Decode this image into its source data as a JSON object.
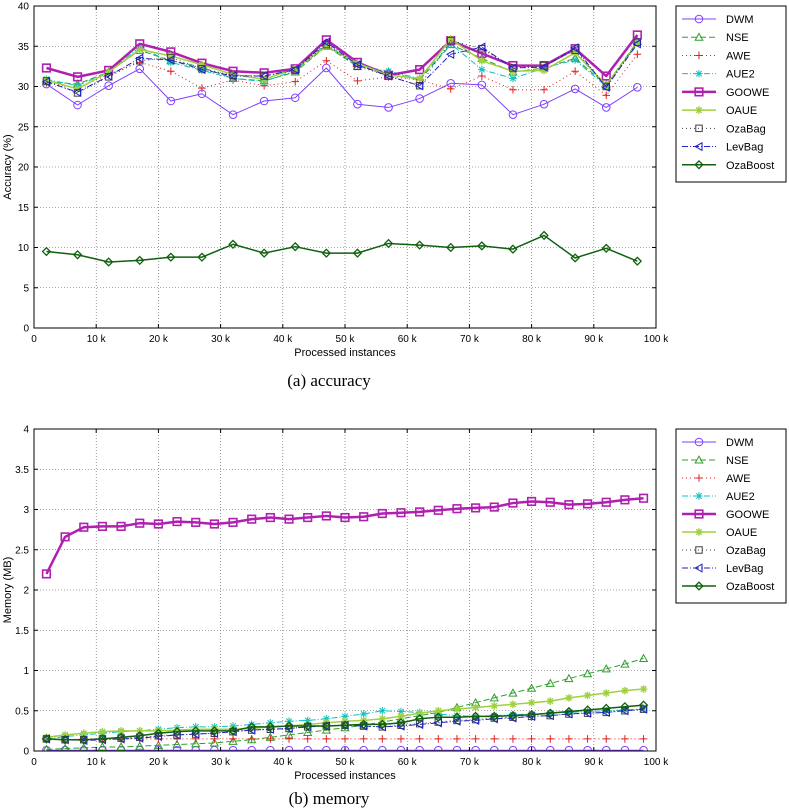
{
  "chart_data": [
    {
      "type": "line",
      "caption": "(a) accuracy",
      "xlabel": "Processed instances",
      "ylabel": "Accuracy (%)",
      "xlim": [
        0,
        100000
      ],
      "ylim": [
        0,
        40
      ],
      "xticks": [
        0,
        10000,
        20000,
        30000,
        40000,
        50000,
        60000,
        70000,
        80000,
        90000,
        100000
      ],
      "xtick_labels": [
        "0",
        "10 k",
        "20 k",
        "30 k",
        "40 k",
        "50 k",
        "60 k",
        "70 k",
        "80 k",
        "90 k",
        "100 k"
      ],
      "yticks": [
        0,
        5,
        10,
        15,
        20,
        25,
        30,
        35,
        40
      ],
      "ytick_labels": [
        "0",
        "5",
        "10",
        "15",
        "20",
        "25",
        "30",
        "35",
        "40"
      ],
      "grid": true,
      "legend": "outside-right",
      "x": [
        2000,
        7000,
        12000,
        17000,
        22000,
        27000,
        32000,
        37000,
        42000,
        47000,
        52000,
        57000,
        62000,
        67000,
        72000,
        77000,
        82000,
        87000,
        92000,
        97000
      ],
      "series": [
        {
          "name": "DWM",
          "color": "#7f3fff",
          "dash": "solid",
          "marker": "circle",
          "width": 1,
          "values": [
            30.3,
            27.7,
            30.1,
            32.2,
            28.2,
            29.1,
            26.5,
            28.2,
            28.6,
            32.3,
            27.8,
            27.4,
            28.5,
            30.4,
            30.2,
            26.5,
            27.8,
            29.7,
            27.4,
            29.9
          ]
        },
        {
          "name": "NSE",
          "color": "#2f9f2f",
          "dash": "6,3",
          "marker": "triangle",
          "width": 1,
          "values": [
            30.6,
            30.3,
            31.8,
            34.5,
            33.2,
            32.4,
            31.0,
            30.7,
            31.8,
            35.0,
            32.5,
            31.8,
            30.8,
            35.2,
            33.5,
            31.8,
            32.3,
            33.5,
            30.2,
            35.6
          ]
        },
        {
          "name": "AWE",
          "color": "#e02020",
          "dash": "1,3",
          "marker": "plus",
          "width": 1,
          "values": [
            30.5,
            29.8,
            31.5,
            33.0,
            31.9,
            29.8,
            30.8,
            30.1,
            30.6,
            33.2,
            30.7,
            31.2,
            30.8,
            29.7,
            31.3,
            29.6,
            29.6,
            31.9,
            28.9,
            34.0
          ]
        },
        {
          "name": "AUE2",
          "color": "#10c0c0",
          "dash": "6,2,1,2",
          "marker": "asterisk",
          "width": 1,
          "values": [
            30.9,
            30.1,
            31.8,
            34.9,
            33.0,
            32.0,
            31.0,
            30.6,
            32.0,
            35.3,
            32.6,
            31.9,
            31.0,
            35.3,
            32.1,
            31.0,
            32.3,
            33.3,
            30.0,
            35.6
          ]
        },
        {
          "name": "GOOWE",
          "color": "#b020b0",
          "dash": "solid",
          "marker": "square",
          "width": 2.5,
          "values": [
            32.3,
            31.2,
            32.0,
            35.3,
            34.3,
            32.9,
            31.9,
            31.7,
            32.2,
            35.8,
            33.0,
            31.4,
            32.1,
            35.7,
            34.1,
            32.6,
            32.6,
            34.7,
            31.3,
            36.4
          ]
        },
        {
          "name": "OAUE",
          "color": "#a0d040",
          "dash": "solid",
          "marker": "star",
          "width": 1.5,
          "values": [
            30.8,
            29.7,
            31.8,
            34.6,
            33.8,
            32.7,
            31.5,
            30.9,
            32.2,
            35.0,
            32.9,
            31.4,
            31.0,
            35.9,
            33.2,
            31.9,
            32.0,
            34.2,
            30.2,
            35.4
          ]
        },
        {
          "name": "OzaBag",
          "color": "#404040",
          "dash": "1,3",
          "marker": "square-open",
          "width": 1,
          "values": [
            30.7,
            29.2,
            31.2,
            33.2,
            33.6,
            32.2,
            31.4,
            31.3,
            32.0,
            35.2,
            32.5,
            31.3,
            30.1,
            35.7,
            34.7,
            32.3,
            32.6,
            34.5,
            30.0,
            35.5
          ]
        },
        {
          "name": "LevBag",
          "color": "#2020c0",
          "dash": "6,2,1,2",
          "marker": "triangle-left",
          "width": 1,
          "values": [
            30.6,
            29.3,
            31.3,
            33.5,
            33.3,
            32.1,
            31.3,
            31.3,
            32.1,
            35.5,
            32.7,
            31.3,
            30.1,
            34.0,
            34.9,
            32.3,
            32.4,
            34.8,
            29.9,
            35.3
          ]
        },
        {
          "name": "OzaBoost",
          "color": "#106010",
          "dash": "solid",
          "marker": "diamond",
          "width": 1.5,
          "values": [
            9.5,
            9.1,
            8.2,
            8.4,
            8.8,
            8.8,
            10.4,
            9.3,
            10.1,
            9.3,
            9.3,
            10.5,
            10.3,
            10.0,
            10.2,
            9.8,
            11.5,
            8.7,
            9.9,
            8.3
          ]
        }
      ]
    },
    {
      "type": "line",
      "caption": "(b) memory",
      "xlabel": "Processed instances",
      "ylabel": "Memory (MB)",
      "xlim": [
        0,
        100000
      ],
      "ylim": [
        0,
        4
      ],
      "xticks": [
        0,
        10000,
        20000,
        30000,
        40000,
        50000,
        60000,
        70000,
        80000,
        90000,
        100000
      ],
      "xtick_labels": [
        "0",
        "10 k",
        "20 k",
        "30 k",
        "40 k",
        "50 k",
        "60 k",
        "70 k",
        "80 k",
        "90 k",
        "100 k"
      ],
      "yticks": [
        0,
        0.5,
        1,
        1.5,
        2,
        2.5,
        3,
        3.5,
        4
      ],
      "ytick_labels": [
        "0",
        "0.5",
        "1",
        "1.5",
        "2",
        "2.5",
        "3",
        "3.5",
        "4"
      ],
      "grid": true,
      "legend": "outside-right",
      "x": [
        2000,
        5000,
        8000,
        11000,
        14000,
        17000,
        20000,
        23000,
        26000,
        29000,
        32000,
        35000,
        38000,
        41000,
        44000,
        47000,
        50000,
        53000,
        56000,
        59000,
        62000,
        65000,
        68000,
        71000,
        74000,
        77000,
        80000,
        83000,
        86000,
        89000,
        92000,
        95000,
        98000
      ],
      "series": [
        {
          "name": "DWM",
          "color": "#7f3fff",
          "dash": "solid",
          "marker": "circle",
          "width": 1,
          "values": [
            0.01,
            0.01,
            0.01,
            0.01,
            0.01,
            0.01,
            0.01,
            0.01,
            0.01,
            0.01,
            0.01,
            0.01,
            0.01,
            0.01,
            0.01,
            0.01,
            0.01,
            0.01,
            0.01,
            0.01,
            0.01,
            0.01,
            0.01,
            0.01,
            0.01,
            0.01,
            0.01,
            0.01,
            0.01,
            0.01,
            0.01,
            0.01,
            0.01
          ]
        },
        {
          "name": "NSE",
          "color": "#2f9f2f",
          "dash": "6,3",
          "marker": "triangle",
          "width": 1,
          "values": [
            0.02,
            0.03,
            0.04,
            0.05,
            0.05,
            0.06,
            0.07,
            0.08,
            0.09,
            0.1,
            0.12,
            0.14,
            0.17,
            0.2,
            0.23,
            0.26,
            0.29,
            0.32,
            0.36,
            0.4,
            0.44,
            0.48,
            0.54,
            0.6,
            0.66,
            0.72,
            0.78,
            0.84,
            0.9,
            0.96,
            1.02,
            1.08,
            1.15
          ]
        },
        {
          "name": "AWE",
          "color": "#e02020",
          "dash": "1,3",
          "marker": "plus",
          "width": 1,
          "values": [
            0.14,
            0.14,
            0.15,
            0.15,
            0.15,
            0.15,
            0.15,
            0.15,
            0.15,
            0.15,
            0.15,
            0.15,
            0.15,
            0.15,
            0.15,
            0.15,
            0.15,
            0.15,
            0.15,
            0.15,
            0.15,
            0.15,
            0.15,
            0.15,
            0.15,
            0.15,
            0.15,
            0.15,
            0.15,
            0.15,
            0.15,
            0.15,
            0.15
          ]
        },
        {
          "name": "AUE2",
          "color": "#10c0c0",
          "dash": "6,2,1,2",
          "marker": "asterisk",
          "width": 1,
          "values": [
            0.15,
            0.18,
            0.2,
            0.22,
            0.24,
            0.25,
            0.27,
            0.29,
            0.3,
            0.3,
            0.31,
            0.33,
            0.35,
            0.37,
            0.38,
            0.4,
            0.43,
            0.46,
            0.5,
            0.49,
            0.48,
            0.46,
            0.44,
            0.43,
            0.44,
            0.45,
            0.46,
            0.47,
            0.48,
            0.49,
            0.5,
            0.51,
            0.52
          ]
        },
        {
          "name": "GOOWE",
          "color": "#b020b0",
          "dash": "solid",
          "marker": "square",
          "width": 2.5,
          "values": [
            2.2,
            2.66,
            2.78,
            2.79,
            2.79,
            2.83,
            2.82,
            2.85,
            2.84,
            2.82,
            2.84,
            2.88,
            2.9,
            2.88,
            2.9,
            2.92,
            2.9,
            2.91,
            2.95,
            2.96,
            2.97,
            2.99,
            3.01,
            3.02,
            3.03,
            3.08,
            3.1,
            3.09,
            3.06,
            3.07,
            3.09,
            3.12,
            3.14
          ]
        },
        {
          "name": "OAUE",
          "color": "#a0d040",
          "dash": "solid",
          "marker": "star",
          "width": 1.5,
          "values": [
            0.17,
            0.2,
            0.22,
            0.24,
            0.25,
            0.25,
            0.25,
            0.26,
            0.27,
            0.27,
            0.27,
            0.28,
            0.3,
            0.31,
            0.33,
            0.35,
            0.37,
            0.38,
            0.4,
            0.43,
            0.47,
            0.5,
            0.52,
            0.54,
            0.56,
            0.58,
            0.6,
            0.62,
            0.66,
            0.69,
            0.72,
            0.75,
            0.77
          ]
        },
        {
          "name": "OzaBag",
          "color": "#404040",
          "dash": "1,3",
          "marker": "square-open",
          "width": 1,
          "values": [
            0.15,
            0.14,
            0.14,
            0.15,
            0.16,
            0.17,
            0.19,
            0.2,
            0.21,
            0.22,
            0.24,
            0.26,
            0.27,
            0.28,
            0.3,
            0.31,
            0.32,
            0.31,
            0.3,
            0.32,
            0.34,
            0.36,
            0.38,
            0.39,
            0.41,
            0.42,
            0.43,
            0.44,
            0.46,
            0.47,
            0.48,
            0.5,
            0.52
          ]
        },
        {
          "name": "LevBag",
          "color": "#2020c0",
          "dash": "6,2,1,2",
          "marker": "triangle-left",
          "width": 1,
          "values": [
            0.15,
            0.14,
            0.13,
            0.14,
            0.15,
            0.16,
            0.18,
            0.2,
            0.21,
            0.22,
            0.24,
            0.26,
            0.27,
            0.28,
            0.3,
            0.31,
            0.32,
            0.31,
            0.3,
            0.31,
            0.33,
            0.35,
            0.37,
            0.38,
            0.4,
            0.41,
            0.43,
            0.44,
            0.46,
            0.47,
            0.48,
            0.5,
            0.52
          ]
        },
        {
          "name": "OzaBoost",
          "color": "#106010",
          "dash": "solid",
          "marker": "diamond",
          "width": 1.5,
          "values": [
            0.15,
            0.14,
            0.14,
            0.15,
            0.17,
            0.19,
            0.22,
            0.24,
            0.25,
            0.25,
            0.25,
            0.3,
            0.3,
            0.31,
            0.31,
            0.31,
            0.32,
            0.33,
            0.33,
            0.35,
            0.4,
            0.42,
            0.42,
            0.43,
            0.43,
            0.44,
            0.45,
            0.47,
            0.49,
            0.51,
            0.53,
            0.55,
            0.57
          ]
        }
      ]
    }
  ]
}
